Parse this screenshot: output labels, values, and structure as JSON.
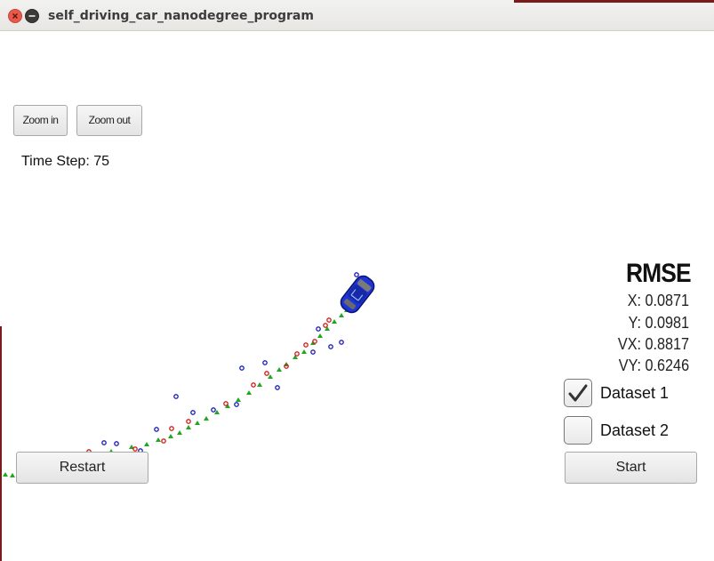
{
  "window": {
    "title": "self_driving_car_nanodegree_program"
  },
  "toolbar": {
    "zoom_in_label": "Zoom in",
    "zoom_out_label": "Zoom out"
  },
  "status": {
    "time_step_label": "Time Step: 75"
  },
  "rmse": {
    "title": "RMSE",
    "x": "X: 0.0871",
    "y": "Y: 0.0981",
    "vx": "VX: 0.8817",
    "vy": "VY: 0.6246"
  },
  "datasets": [
    {
      "label": "Dataset 1",
      "checked": true
    },
    {
      "label": "Dataset 2",
      "checked": false
    }
  ],
  "controls": {
    "restart_label": "Restart",
    "start_label": "Start"
  },
  "colors": {
    "estimate_marker": "#1fa81f",
    "lidar_marker": "#d11a1a",
    "radar_marker": "#1a1ab8",
    "car_body": "#1e34d6"
  }
}
